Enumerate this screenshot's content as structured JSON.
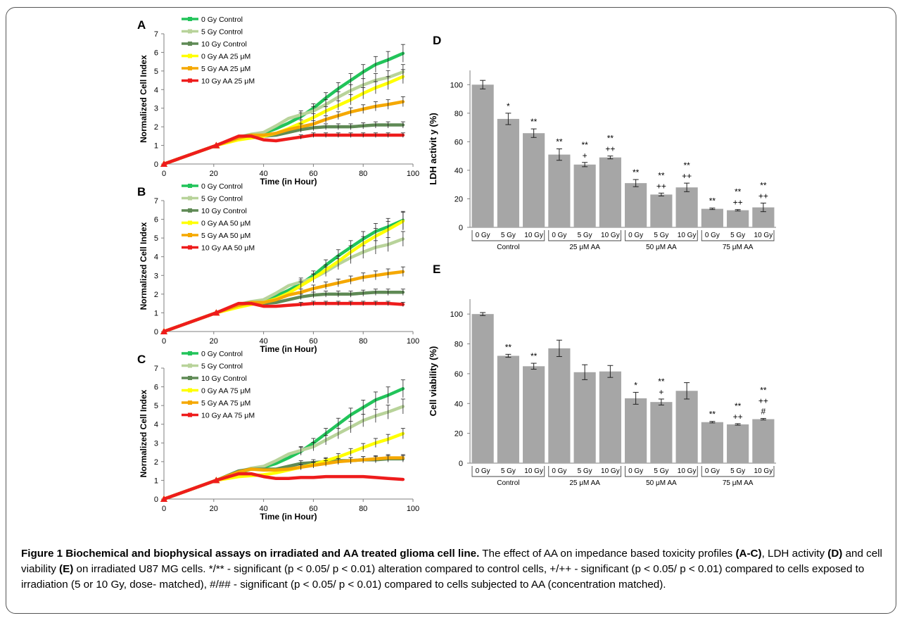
{
  "caption": {
    "lead": "Figure 1 Biochemical and biophysical assays on irradiated and AA treated glioma cell line.",
    "s1": " The effect of AA on impedance based toxicity profiles ",
    "r1": "(A-C)",
    "s2": ", LDH activity ",
    "r2": "(D)",
    "s3": " and cell viability ",
    "r3": "(E)",
    "s4": " on irradiated U87 MG cells. */** - significant (p < 0.05/ p < 0.01) alteration compared to control cells, +/++ - significant (p < 0.05/ p < 0.01) compared to cells exposed to irradiation (5 or 10 Gy, dose- matched), #/## - significant (p < 0.05/ p < 0.01) compared to cells subjected to AA (concentration matched)."
  },
  "colors": {
    "green": "#22c45a",
    "lightgreen": "#b8d39a",
    "darkgreen": "#5f8a55",
    "yellow": "#ffff00",
    "orange": "#f5a800",
    "red": "#ee1c1c",
    "bar": "#a6a6a6"
  },
  "chart_data": [
    {
      "type": "line",
      "panel": "A",
      "xlabel": "Time (in Hour)",
      "ylabel": "Normalized Cell Index",
      "xlim": [
        0,
        100
      ],
      "ylim": [
        0,
        7
      ],
      "xticks": [
        "0",
        "20",
        "40",
        "60",
        "80",
        "100"
      ],
      "yticks": [
        "0",
        "1",
        "2",
        "3",
        "4",
        "5",
        "6",
        "7"
      ],
      "legend_position": "top-left",
      "x": [
        0,
        21,
        30,
        35,
        40,
        45,
        50,
        55,
        60,
        65,
        70,
        75,
        80,
        85,
        90,
        96
      ],
      "series": [
        {
          "name": "0 Gy Control",
          "color": "green",
          "values": [
            0,
            1.0,
            1.4,
            1.55,
            1.65,
            1.9,
            2.2,
            2.55,
            3.0,
            3.55,
            4.05,
            4.5,
            4.95,
            5.35,
            5.6,
            5.95
          ]
        },
        {
          "name": "5 Gy Control",
          "color": "lightgreen",
          "values": [
            0,
            1.0,
            1.45,
            1.6,
            1.7,
            2.05,
            2.45,
            2.65,
            2.85,
            3.2,
            3.6,
            3.95,
            4.25,
            4.5,
            4.65,
            4.95
          ]
        },
        {
          "name": "10 Gy Control",
          "color": "darkgreen",
          "values": [
            0,
            1.0,
            1.45,
            1.55,
            1.5,
            1.55,
            1.7,
            1.85,
            1.95,
            2.0,
            2.0,
            2.0,
            2.05,
            2.1,
            2.1,
            2.1
          ]
        },
        {
          "name": "0 Gy AA 25 μM",
          "color": "yellow",
          "values": [
            0,
            1.0,
            1.3,
            1.4,
            1.5,
            1.65,
            1.9,
            2.2,
            2.5,
            2.85,
            3.15,
            3.45,
            3.8,
            4.1,
            4.35,
            4.7
          ]
        },
        {
          "name": "5 Gy AA 25 μM",
          "color": "orange",
          "values": [
            0,
            1.0,
            1.4,
            1.55,
            1.55,
            1.65,
            1.85,
            2.0,
            2.15,
            2.4,
            2.6,
            2.8,
            2.95,
            3.1,
            3.2,
            3.35
          ]
        },
        {
          "name": "10 Gy AA 25 μM",
          "color": "red",
          "values": [
            0,
            1.0,
            1.5,
            1.5,
            1.3,
            1.25,
            1.35,
            1.45,
            1.55,
            1.55,
            1.55,
            1.55,
            1.55,
            1.55,
            1.55,
            1.55
          ]
        }
      ]
    },
    {
      "type": "line",
      "panel": "B",
      "xlabel": "Time (in Hour)",
      "ylabel": "Normalized Cell Index",
      "xlim": [
        0,
        100
      ],
      "ylim": [
        0,
        7
      ],
      "xticks": [
        "0",
        "20",
        "40",
        "60",
        "80",
        "100"
      ],
      "yticks": [
        "0",
        "1",
        "2",
        "3",
        "4",
        "5",
        "6",
        "7"
      ],
      "legend_position": "top-left",
      "x": [
        0,
        21,
        30,
        35,
        40,
        45,
        50,
        55,
        60,
        65,
        70,
        75,
        80,
        85,
        90,
        96
      ],
      "series": [
        {
          "name": "0 Gy Control",
          "color": "green",
          "values": [
            0,
            1.0,
            1.4,
            1.55,
            1.65,
            1.9,
            2.2,
            2.55,
            3.0,
            3.55,
            4.05,
            4.5,
            4.95,
            5.35,
            5.6,
            5.95
          ]
        },
        {
          "name": "5 Gy Control",
          "color": "lightgreen",
          "values": [
            0,
            1.0,
            1.45,
            1.6,
            1.7,
            2.05,
            2.45,
            2.65,
            2.85,
            3.2,
            3.6,
            3.95,
            4.25,
            4.5,
            4.65,
            4.95
          ]
        },
        {
          "name": "10 Gy Control",
          "color": "darkgreen",
          "values": [
            0,
            1.0,
            1.45,
            1.55,
            1.5,
            1.55,
            1.7,
            1.85,
            1.95,
            2.0,
            2.0,
            2.0,
            2.05,
            2.1,
            2.1,
            2.1
          ]
        },
        {
          "name": "0 Gy AA 50 μM",
          "color": "yellow",
          "values": [
            0,
            1.0,
            1.3,
            1.45,
            1.55,
            1.75,
            2.05,
            2.45,
            2.85,
            3.3,
            3.75,
            4.25,
            4.7,
            5.1,
            5.45,
            5.9
          ]
        },
        {
          "name": "5 Gy AA 50 μM",
          "color": "orange",
          "values": [
            0,
            1.0,
            1.4,
            1.55,
            1.55,
            1.7,
            1.95,
            2.1,
            2.3,
            2.45,
            2.6,
            2.75,
            2.9,
            3.0,
            3.1,
            3.2
          ]
        },
        {
          "name": "10 Gy AA 50 μM",
          "color": "red",
          "values": [
            0,
            1.0,
            1.5,
            1.5,
            1.35,
            1.35,
            1.4,
            1.45,
            1.5,
            1.5,
            1.5,
            1.5,
            1.5,
            1.5,
            1.5,
            1.45
          ]
        }
      ]
    },
    {
      "type": "line",
      "panel": "C",
      "xlabel": "Time (in Hour)",
      "ylabel": "Normalized Cell Index",
      "xlim": [
        0,
        100
      ],
      "ylim": [
        0,
        7
      ],
      "xticks": [
        "0",
        "20",
        "40",
        "60",
        "80",
        "100"
      ],
      "yticks": [
        "0",
        "1",
        "2",
        "3",
        "4",
        "5",
        "6",
        "7"
      ],
      "legend_position": "top-left",
      "x": [
        0,
        21,
        30,
        35,
        40,
        45,
        50,
        55,
        60,
        65,
        70,
        75,
        80,
        85,
        90,
        96
      ],
      "series": [
        {
          "name": "0 Gy Control",
          "color": "green",
          "values": [
            0,
            1.0,
            1.4,
            1.6,
            1.7,
            1.9,
            2.2,
            2.55,
            3.0,
            3.5,
            4.0,
            4.5,
            4.9,
            5.3,
            5.55,
            5.9
          ]
        },
        {
          "name": "5 Gy Control",
          "color": "lightgreen",
          "values": [
            0,
            1.0,
            1.45,
            1.65,
            1.75,
            2.05,
            2.4,
            2.6,
            2.8,
            3.15,
            3.5,
            3.85,
            4.2,
            4.45,
            4.65,
            4.95
          ]
        },
        {
          "name": "10 Gy Control",
          "color": "darkgreen",
          "values": [
            0,
            1.0,
            1.5,
            1.6,
            1.6,
            1.6,
            1.75,
            1.9,
            1.95,
            2.0,
            2.05,
            2.05,
            2.1,
            2.1,
            2.15,
            2.15
          ]
        },
        {
          "name": "0 Gy AA 75 μM",
          "color": "yellow",
          "values": [
            0,
            1.0,
            1.2,
            1.25,
            1.3,
            1.4,
            1.55,
            1.7,
            1.85,
            2.05,
            2.25,
            2.5,
            2.75,
            3.0,
            3.2,
            3.5
          ]
        },
        {
          "name": "5 Gy AA 75 μM",
          "color": "orange",
          "values": [
            0,
            1.0,
            1.45,
            1.6,
            1.55,
            1.55,
            1.6,
            1.7,
            1.8,
            1.9,
            2.0,
            2.05,
            2.1,
            2.15,
            2.2,
            2.2
          ]
        },
        {
          "name": "10 Gy AA 75 μM",
          "color": "red",
          "values": [
            0,
            1.0,
            1.35,
            1.35,
            1.2,
            1.1,
            1.1,
            1.15,
            1.15,
            1.2,
            1.2,
            1.2,
            1.2,
            1.15,
            1.1,
            1.05
          ]
        }
      ]
    },
    {
      "type": "bar",
      "panel": "D",
      "ylabel": "LDH activit y (%)",
      "ylim": [
        0,
        110
      ],
      "yticks": [
        "0",
        "20",
        "40",
        "60",
        "80",
        "100"
      ],
      "categories": [
        "0 Gy",
        "5 Gy",
        "10 Gy",
        "0 Gy",
        "5 Gy",
        "10 Gy",
        "0 Gy",
        "5 Gy",
        "10 Gy",
        "0 Gy",
        "5 Gy",
        "10 Gy"
      ],
      "groups": [
        "Control",
        "25 μM AA",
        "50 μM AA",
        "75 μM AA"
      ],
      "values": [
        100,
        76,
        66,
        51,
        44,
        49,
        31,
        23,
        28,
        13,
        12,
        14
      ],
      "errors": [
        3,
        4,
        3,
        4,
        1.5,
        1,
        2.5,
        1,
        3,
        0.5,
        0.5,
        3
      ],
      "annotations": [
        [],
        [
          "*"
        ],
        [
          "**"
        ],
        [
          "**"
        ],
        [
          "**",
          "+"
        ],
        [
          "**",
          "++"
        ],
        [
          "**"
        ],
        [
          "**",
          "++"
        ],
        [
          "**",
          "++"
        ],
        [
          "**"
        ],
        [
          "**",
          "++"
        ],
        [
          "**",
          "++"
        ]
      ]
    },
    {
      "type": "bar",
      "panel": "E",
      "ylabel": "Cell viability (%)",
      "ylim": [
        0,
        110
      ],
      "yticks": [
        "0",
        "20",
        "40",
        "60",
        "80",
        "100"
      ],
      "categories": [
        "0 Gy",
        "5 Gy",
        "10 Gy",
        "0 Gy",
        "5 Gy",
        "10 Gy",
        "0 Gy",
        "5 Gy",
        "10 Gy",
        "0 Gy",
        "5 Gy",
        "10 Gy"
      ],
      "groups": [
        "Control",
        "25 μM AA",
        "50 μM AA",
        "75 μM AA"
      ],
      "values": [
        100,
        72,
        65,
        77,
        61,
        61.5,
        43.5,
        41,
        48.5,
        27.5,
        26,
        29.5
      ],
      "errors": [
        1,
        1,
        2,
        5.5,
        5,
        4,
        4,
        2,
        5.5,
        0.5,
        0.5,
        0.5
      ],
      "annotations": [
        [],
        [
          "**"
        ],
        [
          "**"
        ],
        [],
        [],
        [],
        [
          "*"
        ],
        [
          "**",
          "+"
        ],
        [],
        [
          "**"
        ],
        [
          "**",
          "++"
        ],
        [
          "**",
          "++",
          "#"
        ]
      ]
    }
  ]
}
